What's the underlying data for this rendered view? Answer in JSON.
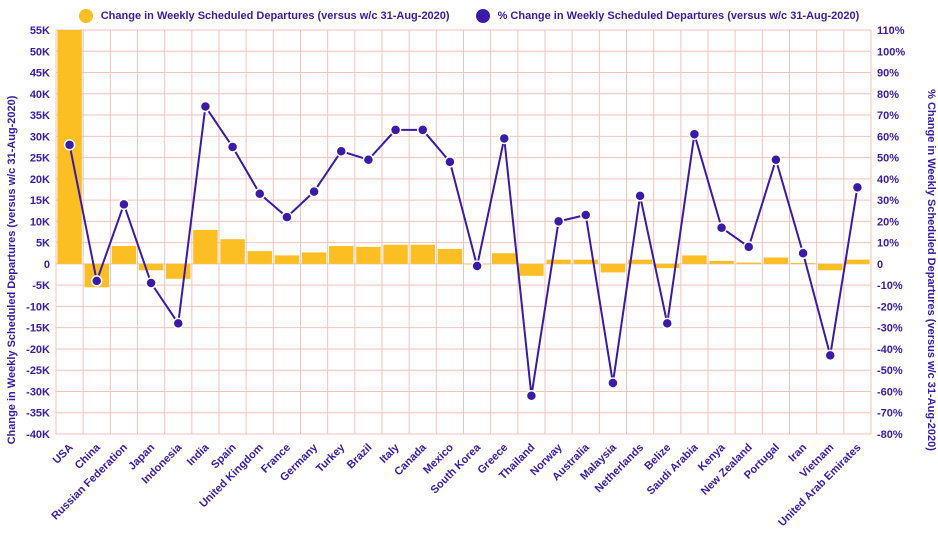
{
  "chart_data": {
    "type": "bar+line",
    "categories": [
      "USA",
      "China",
      "Russian Federation",
      "Japan",
      "Indonesia",
      "India",
      "Spain",
      "United Kingdom",
      "France",
      "Germany",
      "Turkey",
      "Brazil",
      "Italy",
      "Canada",
      "Mexico",
      "South Korea",
      "Greece",
      "Thailand",
      "Norway",
      "Australia",
      "Malaysia",
      "Netherlands",
      "Belize",
      "Saudi Arabia",
      "Kenya",
      "New Zealand",
      "Portugal",
      "Iran",
      "Vietnam",
      "United Arab Emirates"
    ],
    "series": [
      {
        "name": "Change in Weekly Scheduled Departures (versus w/c 31-Aug-2020)",
        "type": "bar",
        "axis": "left",
        "color": "#fbbf24",
        "values": [
          55000,
          -5500,
          4200,
          -1500,
          -3500,
          8000,
          5800,
          3000,
          2000,
          2700,
          4200,
          4000,
          4500,
          4500,
          3500,
          0,
          2500,
          -2800,
          1000,
          1000,
          -2000,
          1000,
          -1000,
          2000,
          700,
          300,
          1500,
          200,
          -1500,
          1000
        ]
      },
      {
        "name": "% Change in Weekly Scheduled Departures (versus w/c 31-Aug-2020)",
        "type": "line",
        "axis": "right",
        "color": "#3a1aa6",
        "values": [
          56,
          -8,
          28,
          -9,
          -28,
          74,
          55,
          33,
          22,
          34,
          53,
          49,
          63,
          63,
          48,
          -1,
          59,
          -62,
          20,
          23,
          -56,
          32,
          -28,
          61,
          17,
          8,
          49,
          5,
          -43,
          36
        ]
      }
    ],
    "y_left": {
      "label": "Change in Weekly Scheduled Departures (versus w/c 31-Aug-2020)",
      "range": [
        -40000,
        55000
      ],
      "ticks": [
        {
          "v": 55000,
          "t": "55K"
        },
        {
          "v": 50000,
          "t": "50K"
        },
        {
          "v": 45000,
          "t": "45K"
        },
        {
          "v": 40000,
          "t": "40K"
        },
        {
          "v": 35000,
          "t": "35K"
        },
        {
          "v": 30000,
          "t": "30K"
        },
        {
          "v": 25000,
          "t": "25K"
        },
        {
          "v": 20000,
          "t": "20K"
        },
        {
          "v": 15000,
          "t": "15K"
        },
        {
          "v": 10000,
          "t": "10K"
        },
        {
          "v": 5000,
          "t": "5K"
        },
        {
          "v": 0,
          "t": "0"
        },
        {
          "v": -5000,
          "t": "-5K"
        },
        {
          "v": -10000,
          "t": "-10K"
        },
        {
          "v": -15000,
          "t": "-15K"
        },
        {
          "v": -20000,
          "t": "-20K"
        },
        {
          "v": -25000,
          "t": "-25K"
        },
        {
          "v": -30000,
          "t": "-30K"
        },
        {
          "v": -35000,
          "t": "-35K"
        },
        {
          "v": -40000,
          "t": "-40K"
        }
      ]
    },
    "y_right": {
      "label": "% Change in Weekly Scheduled Departures (versus w/c 31-Aug-2020)",
      "range": [
        -80,
        110
      ],
      "ticks": [
        {
          "v": 110,
          "t": "110%"
        },
        {
          "v": 100,
          "t": "100%"
        },
        {
          "v": 90,
          "t": "90%"
        },
        {
          "v": 80,
          "t": "80%"
        },
        {
          "v": 70,
          "t": "70%"
        },
        {
          "v": 60,
          "t": "60%"
        },
        {
          "v": 50,
          "t": "50%"
        },
        {
          "v": 40,
          "t": "40%"
        },
        {
          "v": 30,
          "t": "30%"
        },
        {
          "v": 20,
          "t": "20%"
        },
        {
          "v": 10,
          "t": "10%"
        },
        {
          "v": 0,
          "t": "0"
        },
        {
          "v": -10,
          "t": "-10%"
        },
        {
          "v": -20,
          "t": "-20%"
        },
        {
          "v": -30,
          "t": "-30%"
        },
        {
          "v": -40,
          "t": "-40%"
        },
        {
          "v": -50,
          "t": "-50%"
        },
        {
          "v": -60,
          "t": "-60%"
        },
        {
          "v": -70,
          "t": "-70%"
        },
        {
          "v": -80,
          "t": "-80%"
        }
      ]
    },
    "grid": true,
    "legend": "top-center",
    "grid_color": "#f3c2bd"
  }
}
